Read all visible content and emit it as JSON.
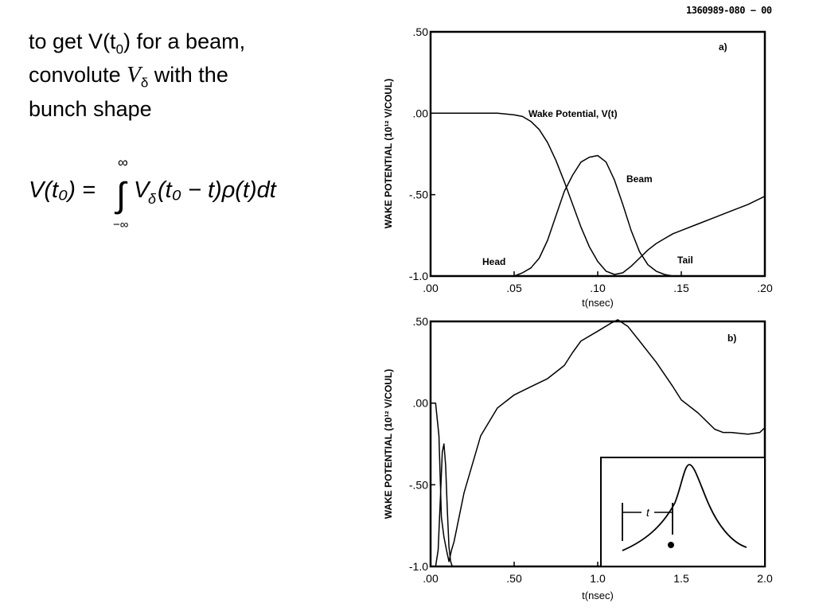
{
  "figure_id": "1360989-080 − 00",
  "intro": {
    "line1_prefix": "to get V(t",
    "line1_sub": "0",
    "line1_suffix": ") for a beam,",
    "line2_prefix": "convolute ",
    "line2_symbol": "V",
    "line2_symbol_sub": "δ",
    "line2_suffix": " with the",
    "line3": "bunch shape"
  },
  "formula": {
    "lhs": "V(t₀) =",
    "upper_limit": "∞",
    "lower_limit": "−∞",
    "integral": "∫",
    "integrand": "V",
    "integrand_sub": "δ",
    "body": "(t₀ − t)ρ(t)dt"
  },
  "chart_data": [
    {
      "type": "line",
      "panel_label": "a)",
      "title": "",
      "xlabel": "t(nsec)",
      "ylabel": "WAKE POTENTIAL (10¹² V/COUL)",
      "xlim": [
        0,
        0.2
      ],
      "ylim": [
        -1.0,
        0.5
      ],
      "x_ticks": [
        ".00",
        ".05",
        ".10",
        ".15",
        ".20"
      ],
      "y_ticks": [
        ".50",
        ".00",
        "-.50",
        "-1.0"
      ],
      "grid": false,
      "annotations": {
        "wake": "Wake Potential, V(t)",
        "beam": "Beam",
        "head": "Head",
        "tail": "Tail"
      },
      "series": [
        {
          "x": [
            0.0,
            0.02,
            0.04,
            0.05,
            0.055,
            0.06,
            0.065,
            0.07,
            0.075,
            0.08,
            0.085,
            0.09,
            0.095,
            0.1,
            0.105,
            0.11,
            0.115,
            0.12,
            0.125,
            0.13,
            0.135,
            0.14,
            0.145,
            0.15,
            0.16,
            0.17,
            0.18,
            0.19,
            0.2
          ],
          "y": [
            0.0,
            0.0,
            0.0,
            -0.01,
            -0.02,
            -0.05,
            -0.1,
            -0.18,
            -0.29,
            -0.42,
            -0.56,
            -0.7,
            -0.82,
            -0.91,
            -0.97,
            -0.99,
            -0.98,
            -0.94,
            -0.89,
            -0.84,
            -0.8,
            -0.77,
            -0.74,
            -0.72,
            -0.68,
            -0.64,
            -0.6,
            -0.56,
            -0.51
          ]
        },
        {
          "x": [
            0.0,
            0.04,
            0.05,
            0.055,
            0.06,
            0.065,
            0.07,
            0.075,
            0.08,
            0.085,
            0.09,
            0.095,
            0.1,
            0.105,
            0.11,
            0.115,
            0.12,
            0.125,
            0.13,
            0.135,
            0.14,
            0.145,
            0.15,
            0.155
          ],
          "y": [
            -1.0,
            -1.0,
            -1.0,
            -0.98,
            -0.95,
            -0.89,
            -0.78,
            -0.63,
            -0.48,
            -0.38,
            -0.3,
            -0.27,
            -0.26,
            -0.3,
            -0.41,
            -0.56,
            -0.72,
            -0.85,
            -0.93,
            -0.97,
            -0.99,
            -1.0,
            -1.0,
            -1.0
          ]
        }
      ]
    },
    {
      "type": "line",
      "panel_label": "b)",
      "title": "",
      "xlabel": "t(nsec)",
      "ylabel": "WAKE POTENTIAL (10¹² V/COUL)",
      "xlim": [
        0,
        2.0
      ],
      "ylim": [
        -1.0,
        0.5
      ],
      "x_ticks": [
        ".00",
        ".50",
        "1.0",
        "1.5",
        "2.0"
      ],
      "y_ticks": [
        ".50",
        ".00",
        "-.50",
        "-1.0"
      ],
      "grid": false,
      "inset_label": "t",
      "series": [
        {
          "x": [
            0.0,
            0.03,
            0.05,
            0.065,
            0.08,
            0.095,
            0.11,
            0.125,
            0.14,
            0.16,
            0.2,
            0.3,
            0.4,
            0.5,
            0.6,
            0.7,
            0.8,
            0.85,
            0.9,
            1.0,
            1.08,
            1.12,
            1.18,
            1.25,
            1.35,
            1.45,
            1.5,
            1.6,
            1.7,
            1.75,
            1.8,
            1.9,
            1.97,
            2.0
          ],
          "y": [
            0.0,
            0.0,
            -0.2,
            -0.7,
            -0.82,
            -0.9,
            -0.97,
            -0.9,
            -0.85,
            -0.75,
            -0.55,
            -0.2,
            -0.03,
            0.05,
            0.1,
            0.15,
            0.23,
            0.31,
            0.38,
            0.44,
            0.49,
            0.51,
            0.47,
            0.38,
            0.25,
            0.1,
            0.02,
            -0.06,
            -0.16,
            -0.18,
            -0.18,
            -0.19,
            -0.18,
            -0.15
          ]
        },
        {
          "x": [
            0.0,
            0.03,
            0.045,
            0.06,
            0.07,
            0.08,
            0.09,
            0.1,
            0.11,
            0.12,
            0.13,
            0.14
          ],
          "y": [
            -1.0,
            -1.0,
            -0.9,
            -0.55,
            -0.3,
            -0.25,
            -0.38,
            -0.65,
            -0.88,
            -0.97,
            -1.0,
            -1.0
          ]
        }
      ]
    }
  ]
}
